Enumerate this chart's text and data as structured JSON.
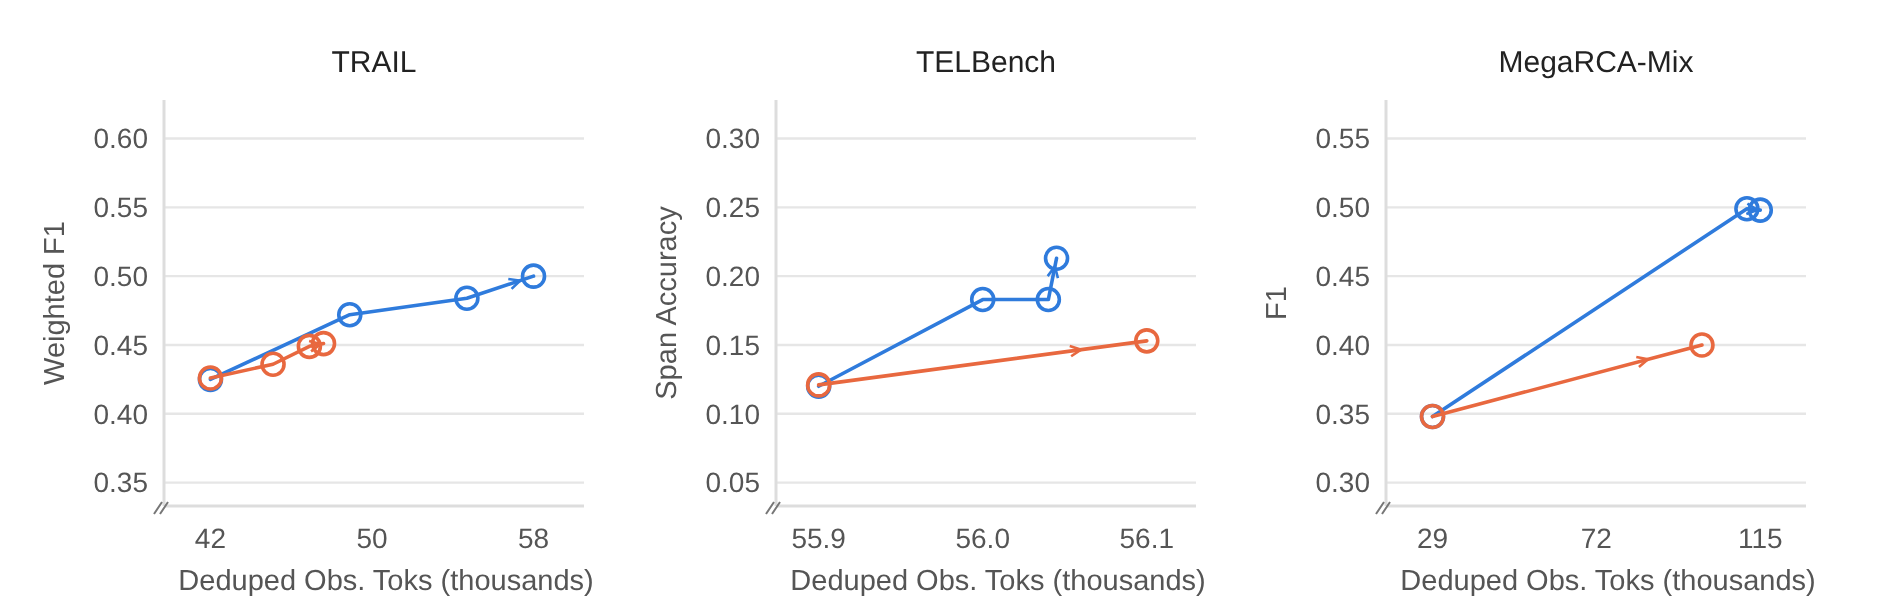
{
  "chart_data": [
    {
      "type": "line",
      "title": "TRAIL",
      "xlabel": "Deduped Obs. Toks (thousands)",
      "ylabel": "Weighted F1",
      "xlim": [
        39.7,
        60.5
      ],
      "xticks": [
        42,
        50,
        58
      ],
      "ylim": [
        0.333,
        0.628
      ],
      "yticks": [
        {
          "value": 0.35,
          "label": "0.35"
        },
        {
          "value": 0.4,
          "label": "0.40"
        },
        {
          "value": 0.45,
          "label": "0.45"
        },
        {
          "value": 0.5,
          "label": "0.50"
        },
        {
          "value": 0.55,
          "label": "0.55"
        },
        {
          "value": 0.6,
          "label": "0.60"
        }
      ],
      "grid": "y",
      "marker": "circle",
      "series": [
        {
          "color": "#2f7bdc",
          "x": [
            42,
            48.9,
            54.7,
            58
          ],
          "values": [
            0.425,
            0.472,
            0.484,
            0.5
          ]
        },
        {
          "color": "#e8683f",
          "x": [
            42,
            45.1,
            46.9,
            47.6
          ],
          "values": [
            0.426,
            0.436,
            0.449,
            0.451
          ]
        }
      ]
    },
    {
      "type": "line",
      "title": "TELBench",
      "xlabel": "Deduped Obs. Toks (thousands)",
      "ylabel": "Span Accuracy",
      "xlim": [
        55.874,
        56.13
      ],
      "xticks": [
        55.9,
        {
          "value": 56,
          "label": "56.0"
        },
        56.1
      ],
      "ylim": [
        0.033,
        0.328
      ],
      "yticks": [
        {
          "value": 0.05,
          "label": "0.05"
        },
        {
          "value": 0.1,
          "label": "0.10"
        },
        {
          "value": 0.15,
          "label": "0.15"
        },
        {
          "value": 0.2,
          "label": "0.20"
        },
        {
          "value": 0.25,
          "label": "0.25"
        },
        {
          "value": 0.3,
          "label": "0.30"
        }
      ],
      "grid": "y",
      "marker": "circle",
      "series": [
        {
          "color": "#2f7bdc",
          "x": [
            55.9,
            56,
            56.04,
            56.045
          ],
          "values": [
            0.12,
            0.183,
            0.183,
            0.213
          ]
        },
        {
          "color": "#e8683f",
          "x": [
            55.9,
            56.1
          ],
          "values": [
            0.121,
            0.153
          ]
        }
      ]
    },
    {
      "type": "line",
      "title": "MegaRCA-Mix",
      "xlabel": "Deduped Obs. Toks (thousands)",
      "ylabel": "F1",
      "xlim": [
        16.8,
        127
      ],
      "xticks": [
        29,
        72,
        115
      ],
      "ylim": [
        0.283,
        0.578
      ],
      "yticks": [
        {
          "value": 0.3,
          "label": "0.30"
        },
        {
          "value": 0.35,
          "label": "0.35"
        },
        {
          "value": 0.4,
          "label": "0.40"
        },
        {
          "value": 0.45,
          "label": "0.45"
        },
        {
          "value": 0.5,
          "label": "0.50"
        },
        {
          "value": 0.55,
          "label": "0.55"
        }
      ],
      "grid": "y",
      "marker": "circle",
      "series": [
        {
          "color": "#2f7bdc",
          "x": [
            29,
            111.5,
            115
          ],
          "values": [
            0.348,
            0.499,
            0.498
          ]
        },
        {
          "color": "#e8683f",
          "x": [
            29,
            99.7
          ],
          "values": [
            0.348,
            0.4
          ]
        }
      ]
    }
  ]
}
